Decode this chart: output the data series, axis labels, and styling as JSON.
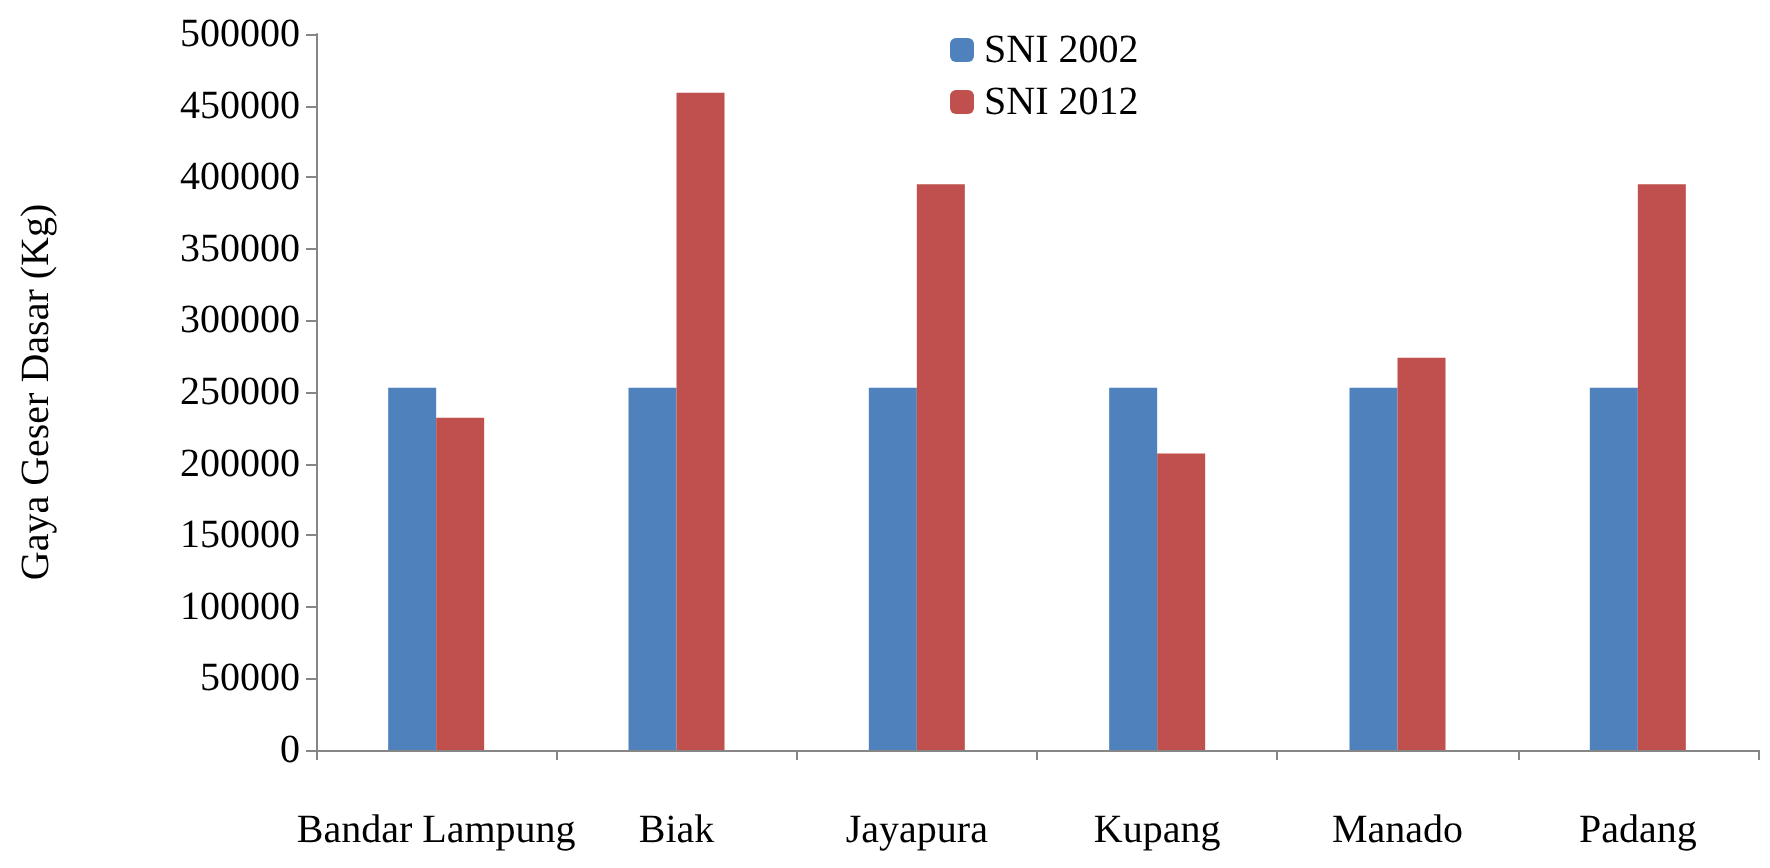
{
  "chart_data": {
    "type": "bar",
    "ylabel": "Gaya Geser Dasar (Kg)",
    "categories": [
      "Bandar Lampung",
      "Biak",
      "Jayapura",
      "Kupang",
      "Manado",
      "Padang"
    ],
    "series": [
      {
        "name": "SNI 2002",
        "color": "#4f81bd",
        "values": [
          253000,
          253000,
          253000,
          253000,
          253000,
          253000
        ]
      },
      {
        "name": "SNI 2012",
        "color": "#c0504d",
        "values": [
          232000,
          459000,
          395000,
          207000,
          274000,
          395000
        ]
      }
    ],
    "ylim": [
      0,
      500000
    ],
    "yticks": [
      0,
      50000,
      100000,
      150000,
      200000,
      250000,
      300000,
      350000,
      400000,
      450000,
      500000
    ],
    "grid": false,
    "legend": "top"
  }
}
